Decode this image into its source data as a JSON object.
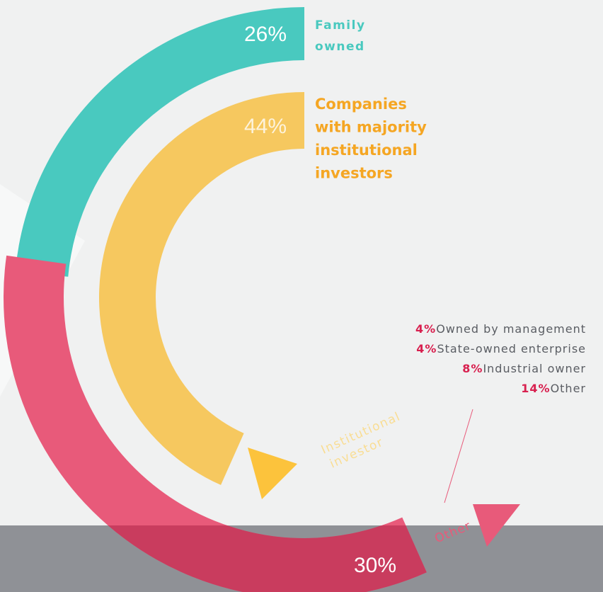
{
  "chart_data": {
    "type": "radial",
    "series": [
      {
        "name_lines": [
          "Family",
          "owned"
        ],
        "values": [
          26
        ],
        "value_labels": [
          "26%"
        ],
        "color": "#49c9bf"
      },
      {
        "name_lines": [
          "Companies",
          "with majority",
          "institutional",
          "investors"
        ],
        "values": [
          44
        ],
        "value_labels": [
          "44%"
        ],
        "color": "#f6c85f"
      },
      {
        "name": "Other",
        "values": [
          30
        ],
        "value_labels": [
          "30%"
        ],
        "color": "#e85a7a"
      }
    ],
    "annotation_lines": [
      "Institutional",
      "investor"
    ],
    "breakdown": [
      {
        "value": 4,
        "value_label": "4%",
        "label": "Owned by management"
      },
      {
        "value": 4,
        "value_label": "4%",
        "label": "State-owned enterprise"
      },
      {
        "value": 8,
        "value_label": "8%",
        "label": "Industrial owner"
      },
      {
        "value": 14,
        "value_label": "14%",
        "label": "Other"
      }
    ]
  }
}
